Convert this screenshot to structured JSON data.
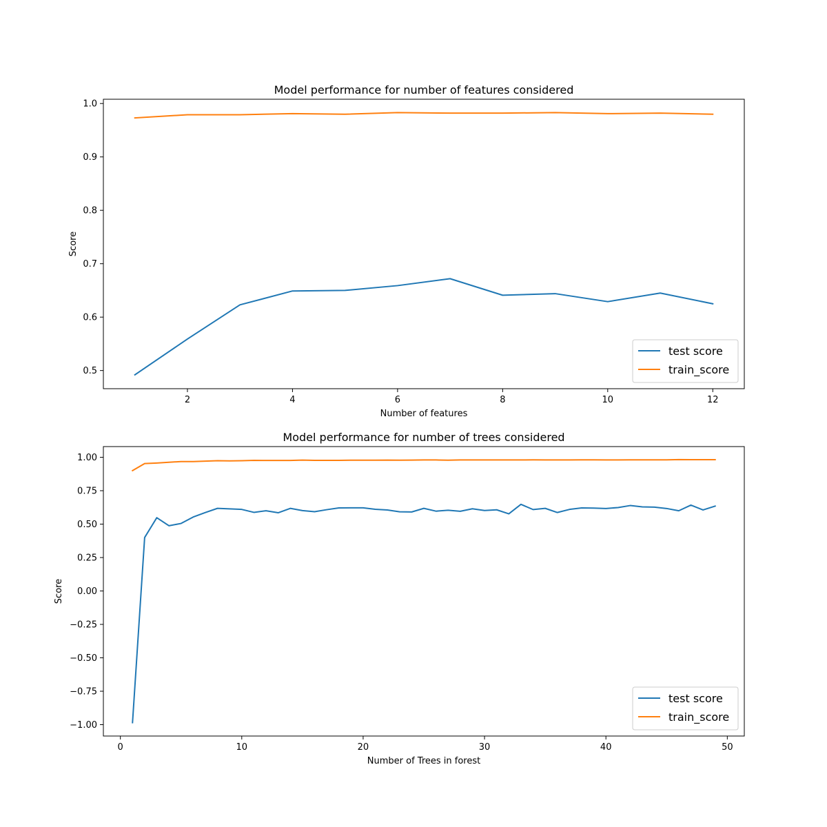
{
  "chart_data": [
    {
      "type": "line",
      "title": "Model performance for number of features considered",
      "xlabel": "Number of features",
      "ylabel": "Score",
      "xlim": [
        0.4,
        12.6
      ],
      "ylim": [
        0.466,
        1.008
      ],
      "xticks": [
        2,
        4,
        6,
        8,
        10,
        12
      ],
      "yticks": [
        0.5,
        0.6,
        0.7,
        0.8,
        0.9,
        1.0
      ],
      "ytick_labels": [
        "0.5",
        "0.6",
        "0.7",
        "0.8",
        "0.9",
        "1.0"
      ],
      "legend_position": "lower-right",
      "x": [
        1,
        2,
        3,
        4,
        5,
        6,
        7,
        8,
        9,
        10,
        11,
        12
      ],
      "series": [
        {
          "name": "test score",
          "color": "#1f77b4",
          "values": [
            0.492,
            0.559,
            0.623,
            0.649,
            0.65,
            0.659,
            0.672,
            0.641,
            0.644,
            0.629,
            0.645,
            0.625
          ]
        },
        {
          "name": "train_score",
          "color": "#ff7f0e",
          "values": [
            0.973,
            0.979,
            0.979,
            0.981,
            0.98,
            0.983,
            0.982,
            0.982,
            0.983,
            0.981,
            0.982,
            0.98
          ]
        }
      ]
    },
    {
      "type": "line",
      "title": "Model performance for number of trees considered",
      "xlabel": "Number of Trees in forest",
      "ylabel": "Score",
      "xlim": [
        -1.4,
        51.4
      ],
      "ylim": [
        -1.085,
        1.08
      ],
      "xticks": [
        0,
        10,
        20,
        30,
        40,
        50
      ],
      "yticks": [
        -1.0,
        -0.75,
        -0.5,
        -0.25,
        0.0,
        0.25,
        0.5,
        0.75,
        1.0
      ],
      "ytick_labels": [
        "−1.00",
        "−0.75",
        "−0.50",
        "−0.25",
        "0.00",
        "0.25",
        "0.50",
        "0.75",
        "1.00"
      ],
      "legend_position": "lower-right",
      "x": [
        1,
        2,
        3,
        4,
        5,
        6,
        7,
        8,
        9,
        10,
        11,
        12,
        13,
        14,
        15,
        16,
        17,
        18,
        19,
        20,
        21,
        22,
        23,
        24,
        25,
        26,
        27,
        28,
        29,
        30,
        31,
        32,
        33,
        34,
        35,
        36,
        37,
        38,
        39,
        40,
        41,
        42,
        43,
        44,
        45,
        46,
        47,
        48,
        49
      ],
      "series": [
        {
          "name": "test score",
          "color": "#1f77b4",
          "values": [
            -0.985,
            0.4,
            0.548,
            0.488,
            0.505,
            0.553,
            0.587,
            0.618,
            0.614,
            0.61,
            0.588,
            0.6,
            0.585,
            0.618,
            0.601,
            0.593,
            0.608,
            0.621,
            0.622,
            0.622,
            0.611,
            0.606,
            0.592,
            0.591,
            0.618,
            0.597,
            0.604,
            0.596,
            0.615,
            0.602,
            0.607,
            0.577,
            0.648,
            0.609,
            0.618,
            0.587,
            0.61,
            0.621,
            0.62,
            0.617,
            0.624,
            0.639,
            0.629,
            0.627,
            0.617,
            0.6,
            0.642,
            0.606,
            0.635
          ]
        },
        {
          "name": "train_score",
          "color": "#ff7f0e",
          "values": [
            0.9,
            0.953,
            0.957,
            0.963,
            0.968,
            0.968,
            0.971,
            0.974,
            0.973,
            0.974,
            0.977,
            0.976,
            0.976,
            0.976,
            0.979,
            0.977,
            0.977,
            0.977,
            0.978,
            0.978,
            0.978,
            0.979,
            0.978,
            0.979,
            0.98,
            0.98,
            0.978,
            0.98,
            0.98,
            0.98,
            0.98,
            0.98,
            0.98,
            0.981,
            0.98,
            0.98,
            0.98,
            0.981,
            0.981,
            0.98,
            0.98,
            0.981,
            0.981,
            0.981,
            0.981,
            0.983,
            0.982,
            0.982,
            0.982
          ]
        }
      ]
    }
  ]
}
